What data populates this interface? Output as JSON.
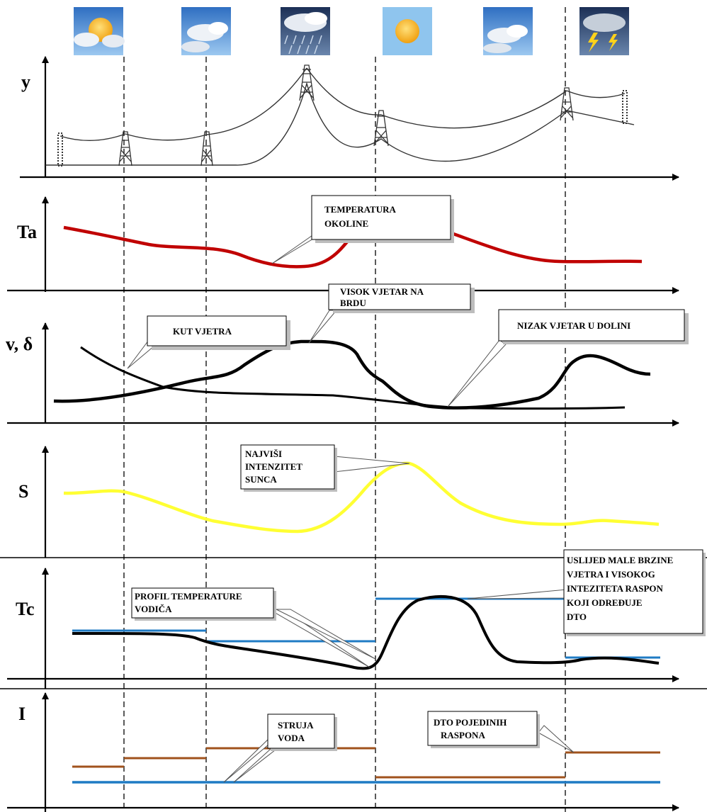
{
  "axes_labels": {
    "y": "y",
    "ta": "Ta",
    "v": "v, δ",
    "s": "S",
    "tc": "Tc",
    "i": "I"
  },
  "weather_icons": [
    "partly-sunny-icon",
    "cloudy-icon",
    "rain-icon",
    "sun-icon",
    "cloudy-icon",
    "storm-icon"
  ],
  "annotations": {
    "ta_note": [
      "TEMPERATURA",
      "OKOLINE"
    ],
    "wind_high_note": [
      "VISOK VJETAR NA",
      "BRDU"
    ],
    "wind_angle_note": [
      "KUT VJETRA"
    ],
    "wind_low_note": [
      "NIZAK VJETAR U DOLINI"
    ],
    "sun_note": [
      "NAJVIŠI",
      "INTENZITET",
      "SUNCA"
    ],
    "tc_note": [
      "PROFIL TEMPERATURE",
      "VODIČA"
    ],
    "dto_note": [
      "USLIJED MALE BRZINE",
      "VJETRA I VISOKOG",
      "INTEZITETA RASPON",
      "KOJI ODREĐUJE",
      "DTO"
    ],
    "current_note": [
      "STRUJA",
      "VODA"
    ],
    "dto_spans_note": [
      "DTO POJEDINIH",
      "RASPONA"
    ]
  },
  "colors": {
    "ambient_temperature": "#c00000",
    "solar": "#ffff33",
    "limit_lines": "#1f7bc4",
    "dto_current": "#a0521c",
    "sky": "#3f8fd9",
    "sun": "#f6b21b"
  }
}
